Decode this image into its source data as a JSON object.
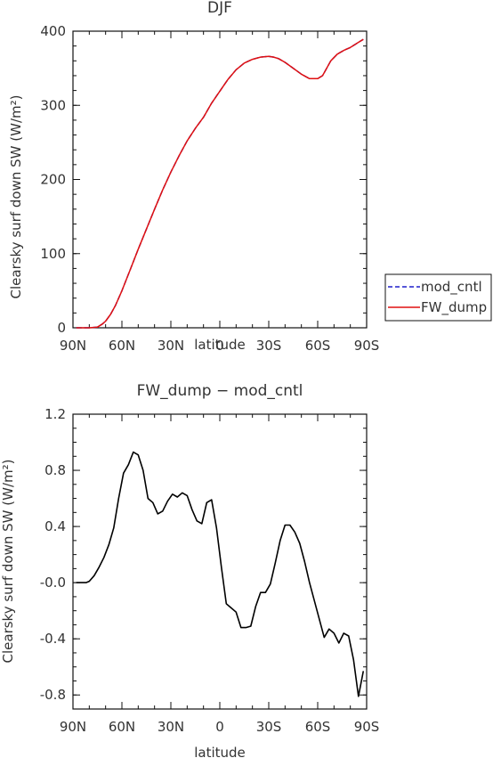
{
  "chart_data": [
    {
      "type": "line",
      "title": "DJF",
      "xlabel": "latitude",
      "ylabel": "Clearsky surf down SW (W/m²)",
      "xlim": [
        90,
        -90
      ],
      "ylim": [
        0,
        400
      ],
      "x_ticks": [
        {
          "value": 90,
          "label": "90N"
        },
        {
          "value": 60,
          "label": "60N"
        },
        {
          "value": 30,
          "label": "30N"
        },
        {
          "value": 0,
          "label": "0"
        },
        {
          "value": -30,
          "label": "30S"
        },
        {
          "value": -60,
          "label": "60S"
        },
        {
          "value": -90,
          "label": "90S"
        }
      ],
      "y_ticks": [
        {
          "value": 0,
          "label": "0"
        },
        {
          "value": 100,
          "label": "100"
        },
        {
          "value": 200,
          "label": "200"
        },
        {
          "value": 300,
          "label": "300"
        },
        {
          "value": 400,
          "label": "400"
        }
      ],
      "legend": [
        {
          "name": "mod_cntl",
          "color": "#1f1fcc",
          "style": "dashed"
        },
        {
          "name": "FW_dump",
          "color": "#e01010",
          "style": "solid"
        }
      ],
      "x": [
        88,
        85,
        80,
        75,
        72,
        70,
        67,
        64,
        60,
        55,
        50,
        45,
        40,
        35,
        30,
        25,
        20,
        15,
        10,
        5,
        0,
        -5,
        -10,
        -15,
        -20,
        -25,
        -30,
        -33,
        -36,
        -40,
        -45,
        -50,
        -55,
        -60,
        -63,
        -65,
        -68,
        -72,
        -76,
        -80,
        -85,
        -88
      ],
      "series": [
        {
          "name": "mod_cntl",
          "values": [
            0,
            0,
            0,
            1,
            5,
            9,
            18,
            30,
            50,
            78,
            106,
            133,
            160,
            186,
            210,
            232,
            252,
            269,
            284,
            303,
            319,
            335,
            348,
            357,
            362,
            365,
            366,
            365,
            363,
            358,
            350,
            342,
            336,
            336,
            340,
            348,
            360,
            369,
            374,
            378,
            385,
            389
          ]
        },
        {
          "name": "FW_dump",
          "values": [
            0,
            0,
            0,
            1,
            5,
            9,
            18,
            30,
            50,
            78,
            106,
            133,
            160,
            186,
            210,
            232,
            252,
            269,
            284,
            303,
            319,
            335,
            348,
            357,
            362,
            365,
            366,
            365,
            363,
            358,
            350,
            342,
            336,
            336,
            340,
            348,
            360,
            369,
            374,
            378,
            385,
            389
          ]
        }
      ]
    },
    {
      "type": "line",
      "title": "FW_dump − mod_cntl",
      "xlabel": "latitude",
      "ylabel": "Clearsky surf down SW (W/m²)",
      "xlim": [
        90,
        -90
      ],
      "ylim": [
        -0.9,
        1.2
      ],
      "x_ticks": [
        {
          "value": 90,
          "label": "90N"
        },
        {
          "value": 60,
          "label": "60N"
        },
        {
          "value": 30,
          "label": "30N"
        },
        {
          "value": 0,
          "label": "0"
        },
        {
          "value": -30,
          "label": "30S"
        },
        {
          "value": -60,
          "label": "60S"
        },
        {
          "value": -90,
          "label": "90S"
        }
      ],
      "y_ticks": [
        {
          "value": 1.2,
          "label": "1.2"
        },
        {
          "value": 0.8,
          "label": "0.8"
        },
        {
          "value": 0.4,
          "label": "0.4"
        },
        {
          "value": 0.0,
          "label": "-0.0"
        },
        {
          "value": -0.4,
          "label": "-0.4"
        },
        {
          "value": -0.8,
          "label": "-0.8"
        }
      ],
      "x": [
        88,
        85,
        82,
        80,
        77,
        74,
        71,
        68,
        65,
        62,
        59,
        56,
        53,
        50,
        47,
        44,
        41,
        38,
        35,
        32,
        29,
        26,
        23,
        20,
        17,
        14,
        11,
        8,
        5,
        2,
        -1,
        -4,
        -7,
        -10,
        -13,
        -16,
        -19,
        -22,
        -25,
        -28,
        -31,
        -34,
        -37,
        -40,
        -43,
        -46,
        -49,
        -52,
        -55,
        -58,
        -61,
        -64,
        -67,
        -70,
        -73,
        -76,
        -79,
        -82,
        -85,
        -88
      ],
      "series": [
        {
          "name": "FW_dump − mod_cntl",
          "values": [
            0.0,
            0.0,
            0.0,
            0.01,
            0.05,
            0.11,
            0.18,
            0.27,
            0.39,
            0.6,
            0.78,
            0.84,
            0.93,
            0.91,
            0.8,
            0.6,
            0.57,
            0.49,
            0.51,
            0.58,
            0.63,
            0.61,
            0.64,
            0.62,
            0.52,
            0.44,
            0.42,
            0.57,
            0.59,
            0.39,
            0.11,
            -0.15,
            -0.18,
            -0.21,
            -0.32,
            -0.32,
            -0.31,
            -0.17,
            -0.07,
            -0.07,
            -0.01,
            0.14,
            0.3,
            0.41,
            0.41,
            0.36,
            0.28,
            0.15,
            0.0,
            -0.13,
            -0.26,
            -0.39,
            -0.33,
            -0.36,
            -0.43,
            -0.36,
            -0.38,
            -0.55,
            -0.81,
            -0.63
          ]
        }
      ]
    }
  ]
}
